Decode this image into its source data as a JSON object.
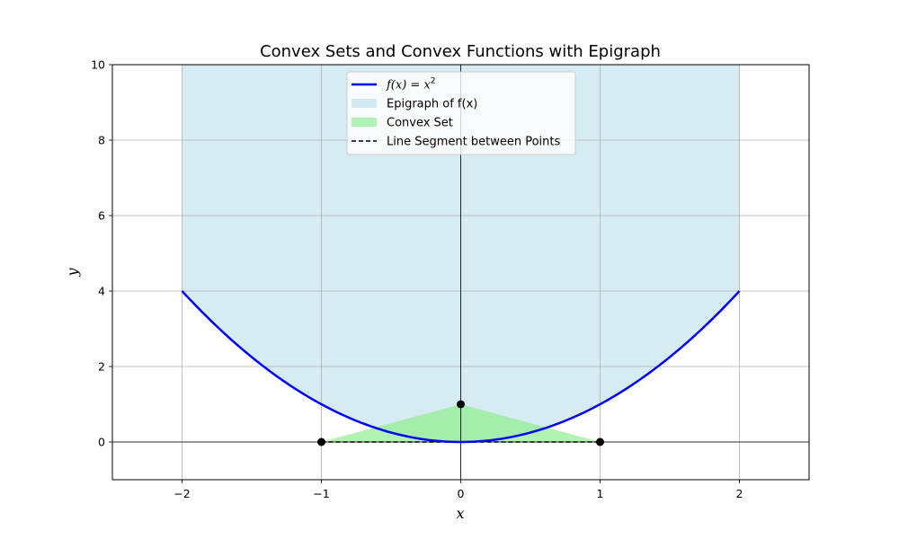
{
  "chart_data": {
    "type": "line",
    "title": "Convex Sets and Convex Functions with Epigraph",
    "xlabel": "x",
    "ylabel": "y",
    "xlim": [
      -2.5,
      2.5
    ],
    "ylim": [
      -1,
      10
    ],
    "x_ticks": [
      -2,
      -1,
      0,
      1,
      2
    ],
    "y_ticks": [
      0,
      2,
      4,
      6,
      8,
      10
    ],
    "x_tick_labels": [
      "−2",
      "−1",
      "0",
      "1",
      "2"
    ],
    "y_tick_labels": [
      "0",
      "2",
      "4",
      "6",
      "8",
      "10"
    ],
    "grid": true,
    "legend_position": "top-center",
    "series": [
      {
        "name": "f(x) = x²",
        "kind": "line",
        "color": "#0000ff",
        "x_range": [
          -2,
          2
        ],
        "function": "x^2"
      },
      {
        "name": "Epigraph of f(x)",
        "kind": "fill-between",
        "color": "#add8e6",
        "x_range": [
          -2,
          2
        ],
        "lower": "x^2",
        "upper": 10
      },
      {
        "name": "Convex Set",
        "kind": "polygon",
        "color": "#90ee90",
        "points": [
          [
            -1,
            0
          ],
          [
            0,
            1
          ],
          [
            1,
            0
          ]
        ]
      },
      {
        "name": "Line Segment between Points",
        "kind": "dashed-line",
        "color": "#000000",
        "points": [
          [
            -1,
            0
          ],
          [
            1,
            0
          ]
        ]
      }
    ],
    "points": [
      {
        "x": -1,
        "y": 0
      },
      {
        "x": 0,
        "y": 1
      },
      {
        "x": 1,
        "y": 0
      }
    ]
  },
  "legend": {
    "items": [
      {
        "label_main": "f(x) = x",
        "label_sup": "2"
      },
      {
        "label_main": "Epigraph of f(x)",
        "label_sup": ""
      },
      {
        "label_main": "Convex Set",
        "label_sup": ""
      },
      {
        "label_main": "Line Segment between Points",
        "label_sup": ""
      }
    ]
  }
}
